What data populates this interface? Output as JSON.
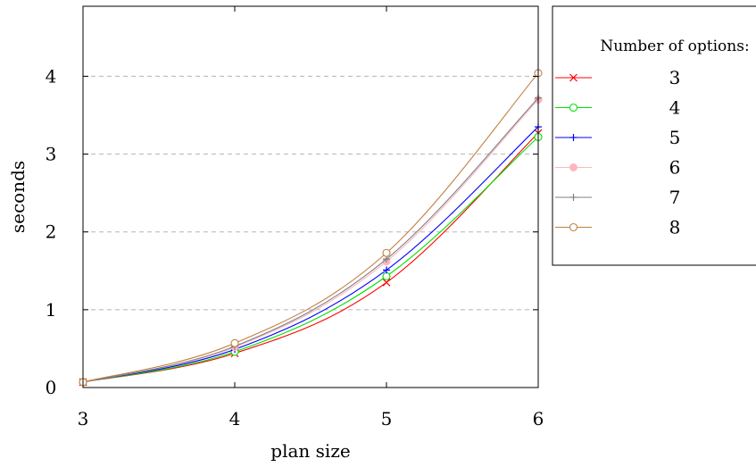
{
  "chart_data": {
    "type": "line",
    "title": "",
    "xlabel": "plan size",
    "ylabel": "seconds",
    "x": [
      3,
      4,
      5,
      6
    ],
    "xlim": [
      3,
      6
    ],
    "ylim": [
      0,
      4.9
    ],
    "xticks": [
      3,
      4,
      5,
      6
    ],
    "yticks": [
      0,
      1,
      2,
      3,
      4
    ],
    "grid": "horizontal dashed",
    "legend_title": "Number of options:",
    "legend_position": "right, outside plot",
    "series": [
      {
        "name": "3",
        "color": "#ff0000",
        "marker": "x",
        "values": [
          0.07,
          0.44,
          1.35,
          3.27
        ]
      },
      {
        "name": "4",
        "color": "#00e000",
        "marker": "circle-open",
        "values": [
          0.07,
          0.46,
          1.43,
          3.22
        ]
      },
      {
        "name": "5",
        "color": "#0000ff",
        "marker": "plus",
        "values": [
          0.07,
          0.49,
          1.51,
          3.35
        ]
      },
      {
        "name": "6",
        "color": "#ffb6c1",
        "marker": "circle-filled",
        "values": [
          0.07,
          0.52,
          1.62,
          3.7
        ]
      },
      {
        "name": "7",
        "color": "#808080",
        "marker": "plus",
        "values": [
          0.07,
          0.53,
          1.65,
          3.72
        ]
      },
      {
        "name": "8",
        "color": "#c08040",
        "marker": "circle-open",
        "values": [
          0.07,
          0.57,
          1.73,
          4.04
        ]
      }
    ]
  }
}
